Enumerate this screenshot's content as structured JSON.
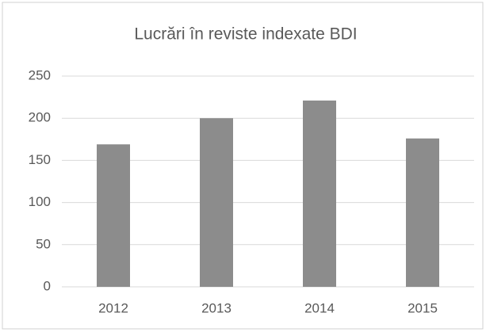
{
  "chart_data": {
    "type": "bar",
    "title": "Lucrări în reviste indexate BDI",
    "categories": [
      "2012",
      "2013",
      "2014",
      "2015"
    ],
    "values": [
      169,
      200,
      221,
      176
    ],
    "color": "#8c8c8c",
    "ylim": [
      0,
      250
    ],
    "yticks": [
      0,
      50,
      100,
      150,
      200,
      250
    ],
    "grid": true
  }
}
